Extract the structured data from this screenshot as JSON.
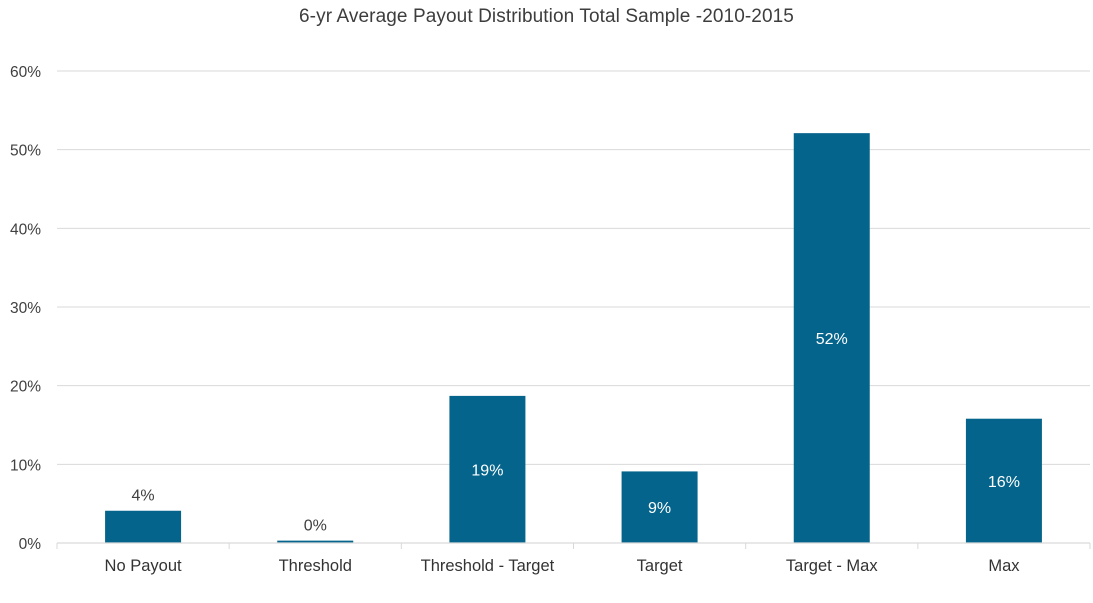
{
  "chart_data": {
    "type": "bar",
    "title": "6-yr Average Payout Distribution Total Sample -2010-2015",
    "xlabel": "",
    "ylabel": "",
    "categories": [
      "No Payout",
      "Threshold",
      "Threshold - Target",
      "Target",
      "Target - Max",
      "Max"
    ],
    "values": [
      4.1,
      0.3,
      18.7,
      9.1,
      52.1,
      15.8
    ],
    "data_labels": [
      "4%",
      "0%",
      "19%",
      "9%",
      "52%",
      "16%"
    ],
    "ylim": [
      0,
      60
    ],
    "yticks": [
      0,
      10,
      20,
      30,
      40,
      50,
      60
    ],
    "ytick_labels": [
      "0%",
      "10%",
      "20%",
      "30%",
      "40%",
      "50%",
      "60%"
    ],
    "grid": true,
    "legend": "none",
    "colors": {
      "bar": "#05648b",
      "grid": "#d9d9d9",
      "label_inside": "#ffffff",
      "label_outside": "#404040"
    }
  }
}
